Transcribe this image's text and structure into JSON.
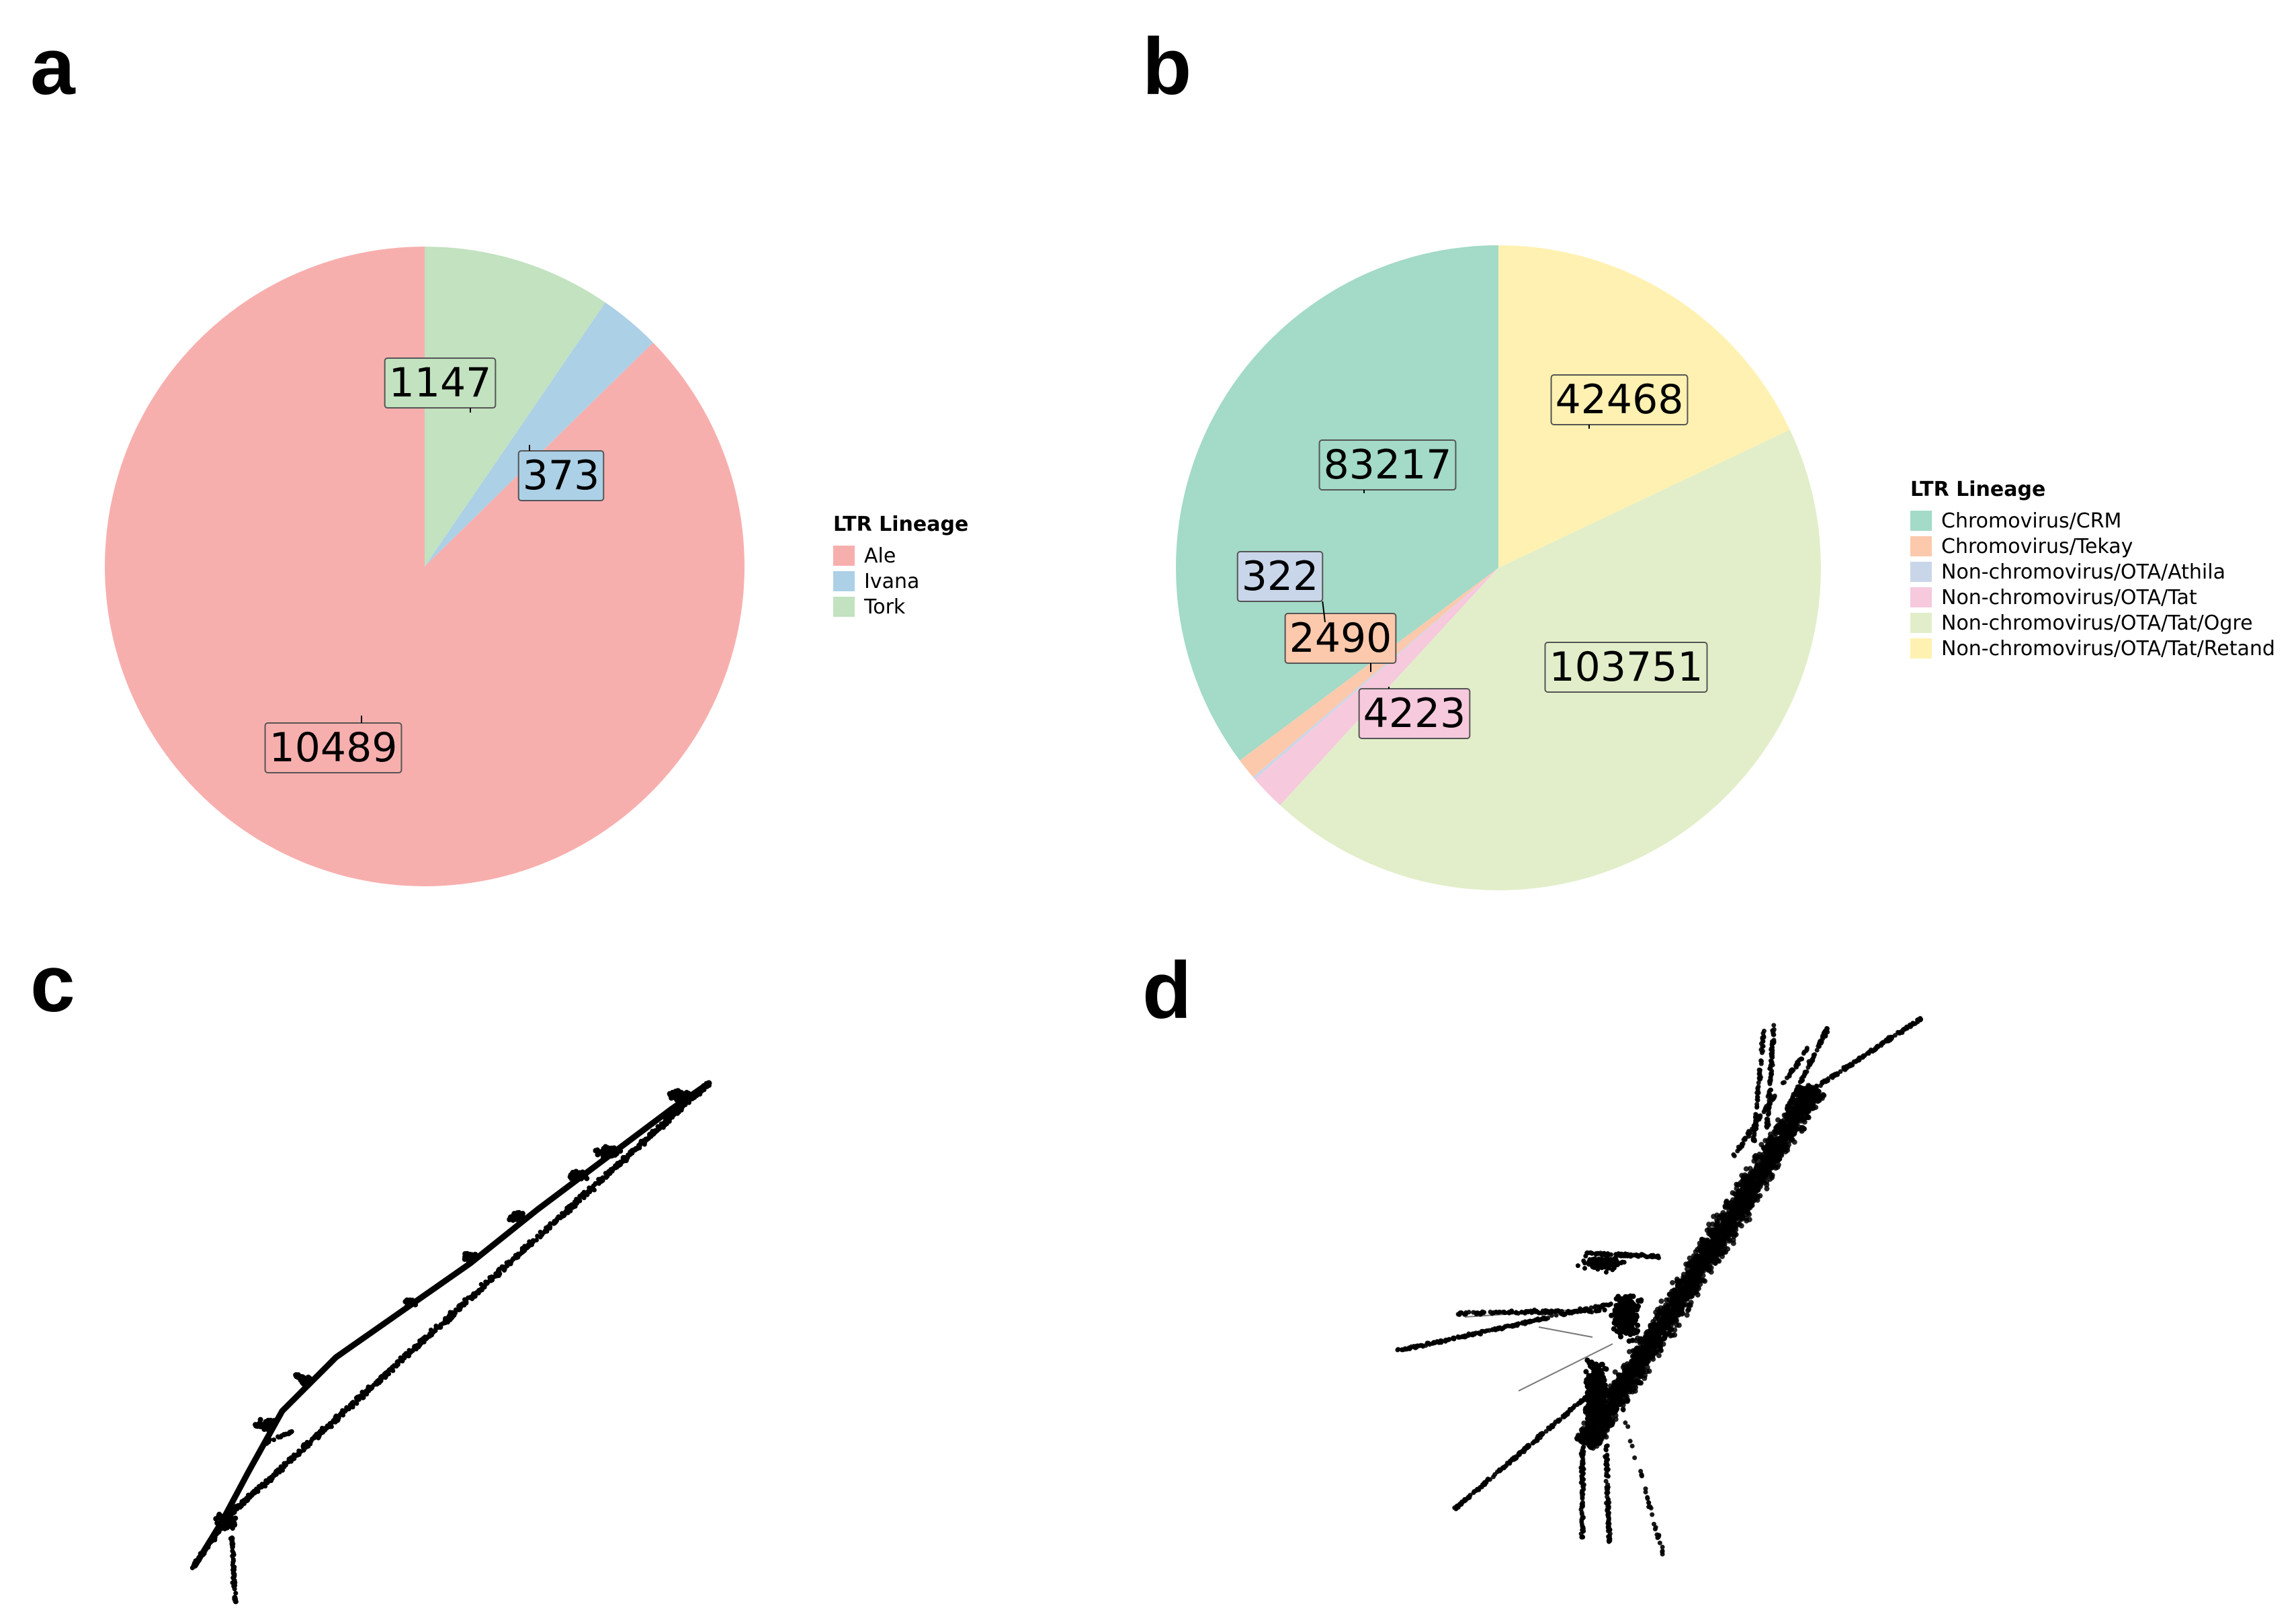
{
  "panels": {
    "a": "a",
    "b": "b",
    "c": "c",
    "d": "d"
  },
  "chart_data": [
    {
      "panel": "a",
      "type": "pie",
      "title": "",
      "legend_title": "LTR Lineage",
      "legend_position": "right",
      "start": "top, counterclockwise",
      "slices": [
        {
          "name": "Ale",
          "value": 10489,
          "color": "#f7afae"
        },
        {
          "name": "Ivana",
          "value": 373,
          "color": "#acd0e6"
        },
        {
          "name": "Tork",
          "value": 1147,
          "color": "#c2e2c0"
        }
      ]
    },
    {
      "panel": "b",
      "type": "pie",
      "title": "",
      "legend_title": "LTR Lineage",
      "legend_position": "right",
      "start": "top, counterclockwise",
      "slices": [
        {
          "name": "Chromovirus/CRM",
          "value": 83217,
          "color": "#a3dac8"
        },
        {
          "name": "Chromovirus/Tekay",
          "value": 2490,
          "color": "#fcc9ac"
        },
        {
          "name": "Non-chromovirus/OTA/Athila",
          "value": 322,
          "color": "#c9d6ea"
        },
        {
          "name": "Non-chromovirus/OTA/Tat",
          "value": 4223,
          "color": "#f6c9dd"
        },
        {
          "name": "Non-chromovirus/OTA/Tat/Ogre",
          "value": 103751,
          "color": "#e2eec9"
        },
        {
          "name": "Non-chromovirus/OTA/Tat/Retand",
          "value": 42468,
          "color": "#fff1b1"
        }
      ]
    },
    {
      "panel": "c",
      "type": "scatter",
      "title": "",
      "axes": "hidden",
      "point_color": "#000000",
      "description_shape": "single elongated diagonal branch"
    },
    {
      "panel": "d",
      "type": "scatter",
      "title": "",
      "axes": "hidden",
      "point_color": "#000000",
      "description_shape": "dense diagonal core with radiating spokes"
    }
  ]
}
